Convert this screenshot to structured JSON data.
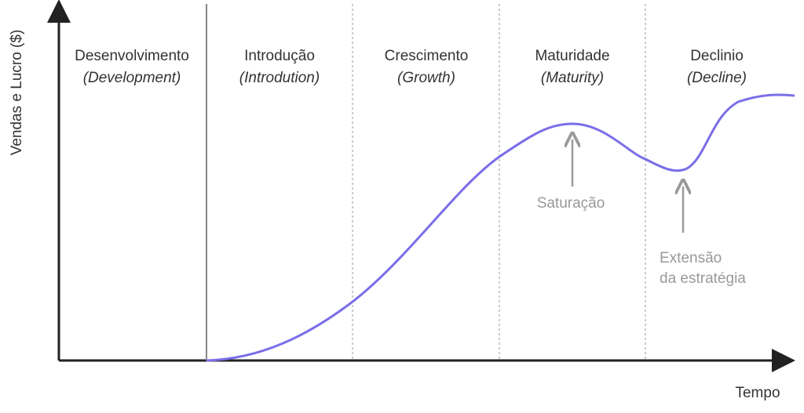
{
  "axis": {
    "y_label": "Vendas e  Lucro ($)",
    "x_label": "Tempo"
  },
  "stages": [
    {
      "label": "Desenvolvimento",
      "english": "(Development)"
    },
    {
      "label": "Introdução",
      "english": "(Introdution)"
    },
    {
      "label": "Crescimento",
      "english": "(Growth)"
    },
    {
      "label": "Maturidade",
      "english": "(Maturity)"
    },
    {
      "label": "Declinio",
      "english": "(Decline)"
    }
  ],
  "annotations": {
    "saturation": "Saturação",
    "extension": [
      "Extensão",
      "da estratégia"
    ]
  }
}
